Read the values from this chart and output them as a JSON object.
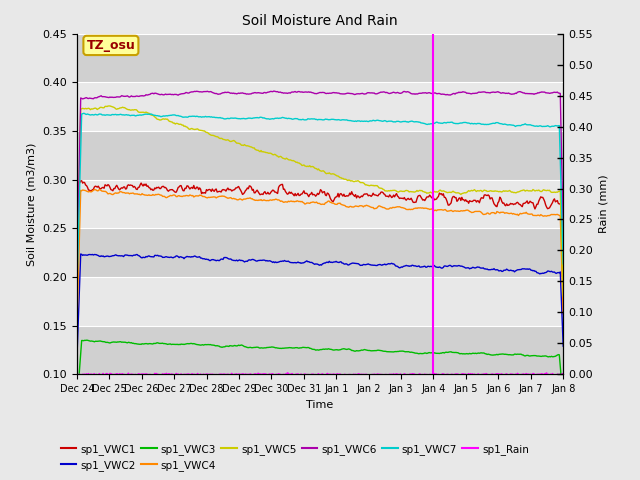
{
  "title": "Soil Moisture And Rain",
  "xlabel": "Time",
  "ylabel_left": "Soil Moisture (m3/m3)",
  "ylabel_right": "Rain (mm)",
  "ylim_left": [
    0.1,
    0.45
  ],
  "ylim_right": [
    0.0,
    0.55
  ],
  "yticks_left": [
    0.1,
    0.15,
    0.2,
    0.25,
    0.3,
    0.35,
    0.4,
    0.45
  ],
  "yticks_right": [
    0.0,
    0.05,
    0.1,
    0.15,
    0.2,
    0.25,
    0.3,
    0.35,
    0.4,
    0.45,
    0.5,
    0.55
  ],
  "fig_bg": "#e8e8e8",
  "plot_bg": "#e8e8e8",
  "band_light": "#e8e8e8",
  "band_dark": "#d0d0d0",
  "label_box_text": "TZ_osu",
  "label_box_bg": "#ffff99",
  "label_box_edge": "#c8a000",
  "label_box_text_color": "#990000",
  "vline_day": 11,
  "vline_color": "magenta",
  "series": {
    "VWC1": {
      "color": "#cc0000",
      "label": "sp1_VWC1"
    },
    "VWC2": {
      "color": "#0000cc",
      "label": "sp1_VWC2"
    },
    "VWC3": {
      "color": "#00bb00",
      "label": "sp1_VWC3"
    },
    "VWC4": {
      "color": "#ff8800",
      "label": "sp1_VWC4"
    },
    "VWC5": {
      "color": "#cccc00",
      "label": "sp1_VWC5"
    },
    "VWC6": {
      "color": "#aa00aa",
      "label": "sp1_VWC6"
    },
    "VWC7": {
      "color": "#00cccc",
      "label": "sp1_VWC7"
    },
    "Rain": {
      "color": "magenta",
      "label": "sp1_Rain"
    }
  },
  "n_points": 500,
  "days": 15,
  "xtick_labels": [
    "Dec 24",
    "Dec 25",
    "Dec 26",
    "Dec 27",
    "Dec 28",
    "Dec 29",
    "Dec 30",
    "Dec 31",
    "Jan 1",
    "Jan 2",
    "Jan 3",
    "Jan 4",
    "Jan 5",
    "Jan 6",
    "Jan 7",
    "Jan 8"
  ],
  "legend_order": [
    "VWC1",
    "VWC2",
    "VWC3",
    "VWC4",
    "VWC5",
    "VWC6",
    "VWC7",
    "Rain"
  ]
}
